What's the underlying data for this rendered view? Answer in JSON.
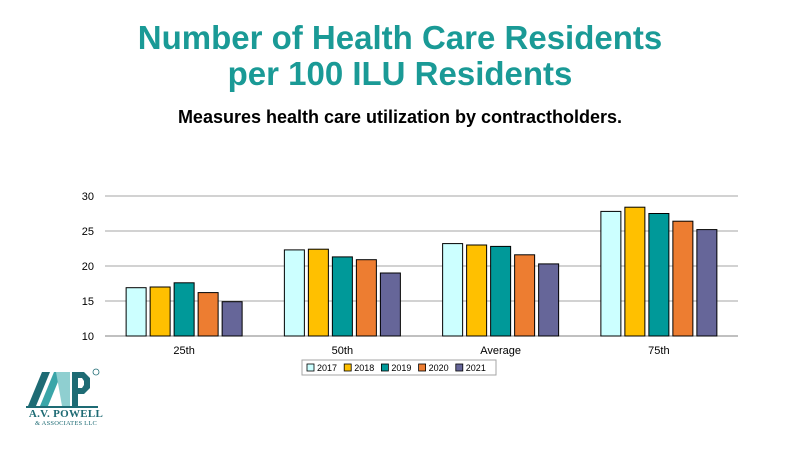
{
  "title_line1": "Number of Health Care Residents",
  "title_line2": "per 100 ILU Residents",
  "subtitle": "Measures health care utilization by contractholders.",
  "logo": {
    "name": "A.V. POWELL",
    "sub": "& ASSOCIATES LLC"
  },
  "chart_data": {
    "type": "bar",
    "categories": [
      "25th",
      "50th",
      "Average",
      "75th"
    ],
    "series": [
      {
        "name": "2017",
        "color": "#ccffff",
        "values": [
          16.9,
          22.3,
          23.2,
          27.8
        ]
      },
      {
        "name": "2018",
        "color": "#ffc000",
        "values": [
          17.0,
          22.4,
          23.0,
          28.4
        ]
      },
      {
        "name": "2019",
        "color": "#009999",
        "values": [
          17.6,
          21.3,
          22.8,
          27.5
        ]
      },
      {
        "name": "2020",
        "color": "#ed7d31",
        "values": [
          16.2,
          20.9,
          21.6,
          26.4
        ]
      },
      {
        "name": "2021",
        "color": "#666699",
        "values": [
          14.9,
          19.0,
          20.3,
          25.2
        ]
      }
    ],
    "ylim": [
      10,
      30
    ],
    "yticks": [
      10,
      15,
      20,
      25,
      30
    ],
    "grid": true,
    "legend": "bottom"
  }
}
